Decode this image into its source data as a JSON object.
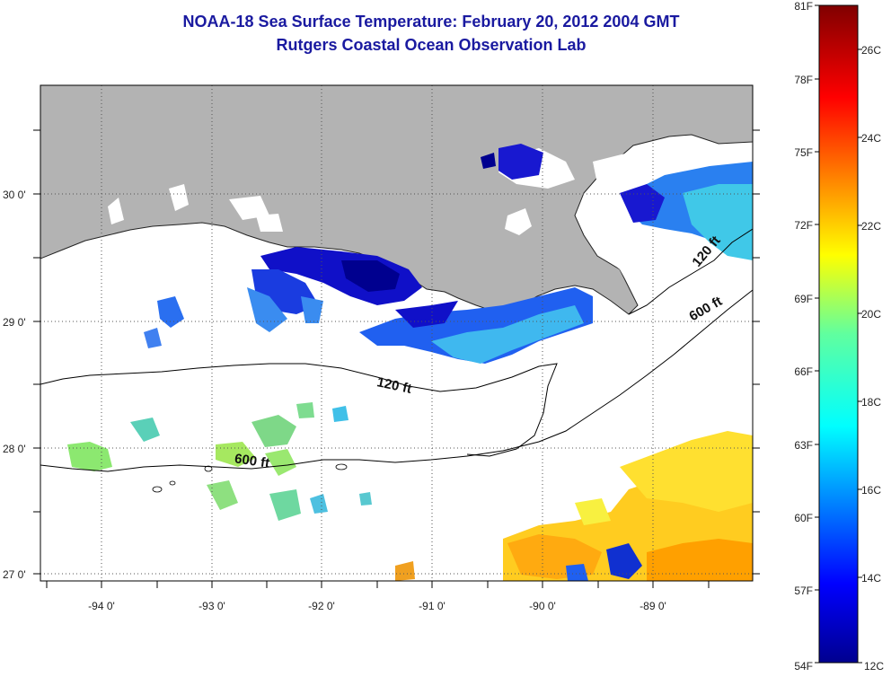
{
  "title_line1": "NOAA-18 Sea Surface Temperature:  February 20, 2012 2004 GMT",
  "title_line2": "Rutgers Coastal Ocean Observation Lab",
  "map": {
    "lon_labels": [
      "-94 0'",
      "-93 0'",
      "-92 0'",
      "-91 0'",
      "-90 0'",
      "-89 0'"
    ],
    "lat_labels": [
      "30 0'",
      "29 0'",
      "28 0'",
      "27 0'"
    ],
    "contour_labels": [
      {
        "text": "120 ft",
        "key": "mid"
      },
      {
        "text": "600 ft",
        "key": "low"
      },
      {
        "text": "600 ft",
        "key": "east"
      },
      {
        "text": "120 ft",
        "key": "east"
      }
    ],
    "colors": {
      "land": "#b3b3b3",
      "cloud": "#ffffff",
      "grid": "#555555"
    }
  },
  "colorbar": {
    "f_labels": [
      "81F",
      "78F",
      "75F",
      "72F",
      "69F",
      "66F",
      "63F",
      "60F",
      "57F",
      "54F"
    ],
    "c_labels": [
      "26C",
      "24C",
      "22C",
      "20C",
      "18C",
      "16C",
      "14C",
      "12C"
    ],
    "min_f": 54,
    "max_f": 81,
    "scale": "jet"
  }
}
